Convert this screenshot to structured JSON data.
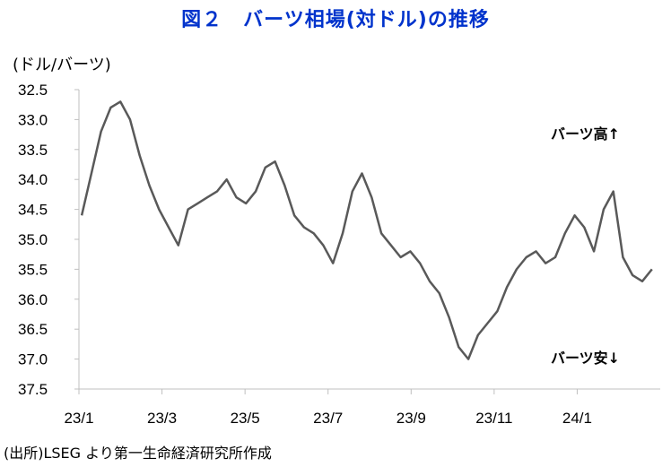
{
  "chart_data": {
    "type": "line",
    "title": "図２　バーツ相場(対ドル)の推移",
    "unit_label": "(ドル/バーツ)",
    "source": "(出所)LSEG より第一生命経済研究所作成",
    "y_inverted": true,
    "ylim": [
      32.5,
      37.5
    ],
    "y_ticks": [
      "32.5",
      "33.0",
      "33.5",
      "34.0",
      "34.5",
      "35.0",
      "35.5",
      "36.0",
      "36.5",
      "37.0",
      "37.5"
    ],
    "x_ticks": [
      "23/1",
      "23/3",
      "23/5",
      "23/7",
      "23/9",
      "23/11",
      "24/1"
    ],
    "annotations": [
      "バーツ高↑",
      "バーツ安↓"
    ],
    "line_color": "#595959",
    "series": [
      {
        "x": [
          "2023-01-03",
          "2023-01-10",
          "2023-01-17",
          "2023-01-24",
          "2023-01-31",
          "2023-02-07",
          "2023-02-14",
          "2023-02-21",
          "2023-02-28",
          "2023-03-07",
          "2023-03-14",
          "2023-03-21",
          "2023-03-28",
          "2023-04-04",
          "2023-04-11",
          "2023-04-18",
          "2023-04-25",
          "2023-05-02",
          "2023-05-09",
          "2023-05-16",
          "2023-05-23",
          "2023-05-30",
          "2023-06-06",
          "2023-06-13",
          "2023-06-20",
          "2023-06-27",
          "2023-07-04",
          "2023-07-11",
          "2023-07-18",
          "2023-07-25",
          "2023-08-01",
          "2023-08-08",
          "2023-08-15",
          "2023-08-22",
          "2023-08-29",
          "2023-09-05",
          "2023-09-12",
          "2023-09-19",
          "2023-09-26",
          "2023-10-03",
          "2023-10-10",
          "2023-10-17",
          "2023-10-24",
          "2023-10-31",
          "2023-11-07",
          "2023-11-14",
          "2023-11-21",
          "2023-11-28",
          "2023-12-05",
          "2023-12-12",
          "2023-12-19",
          "2023-12-26",
          "2024-01-02",
          "2024-01-09",
          "2024-01-16",
          "2024-01-23",
          "2024-01-30",
          "2024-02-06",
          "2024-02-13",
          "2024-02-20"
        ],
        "values": [
          34.6,
          33.9,
          33.2,
          32.8,
          32.7,
          33.0,
          33.6,
          34.1,
          34.5,
          34.8,
          35.1,
          34.5,
          34.4,
          34.3,
          34.2,
          34.0,
          34.3,
          34.4,
          34.2,
          33.8,
          33.7,
          34.1,
          34.6,
          34.8,
          34.9,
          35.1,
          35.4,
          34.9,
          34.2,
          33.9,
          34.3,
          34.9,
          35.1,
          35.3,
          35.2,
          35.4,
          35.7,
          35.9,
          36.3,
          36.8,
          37.0,
          36.6,
          36.4,
          36.2,
          35.8,
          35.5,
          35.3,
          35.2,
          35.4,
          35.3,
          34.9,
          34.6,
          34.8,
          35.2,
          34.5,
          34.2,
          35.3,
          35.6,
          35.7,
          35.5
        ]
      }
    ]
  }
}
